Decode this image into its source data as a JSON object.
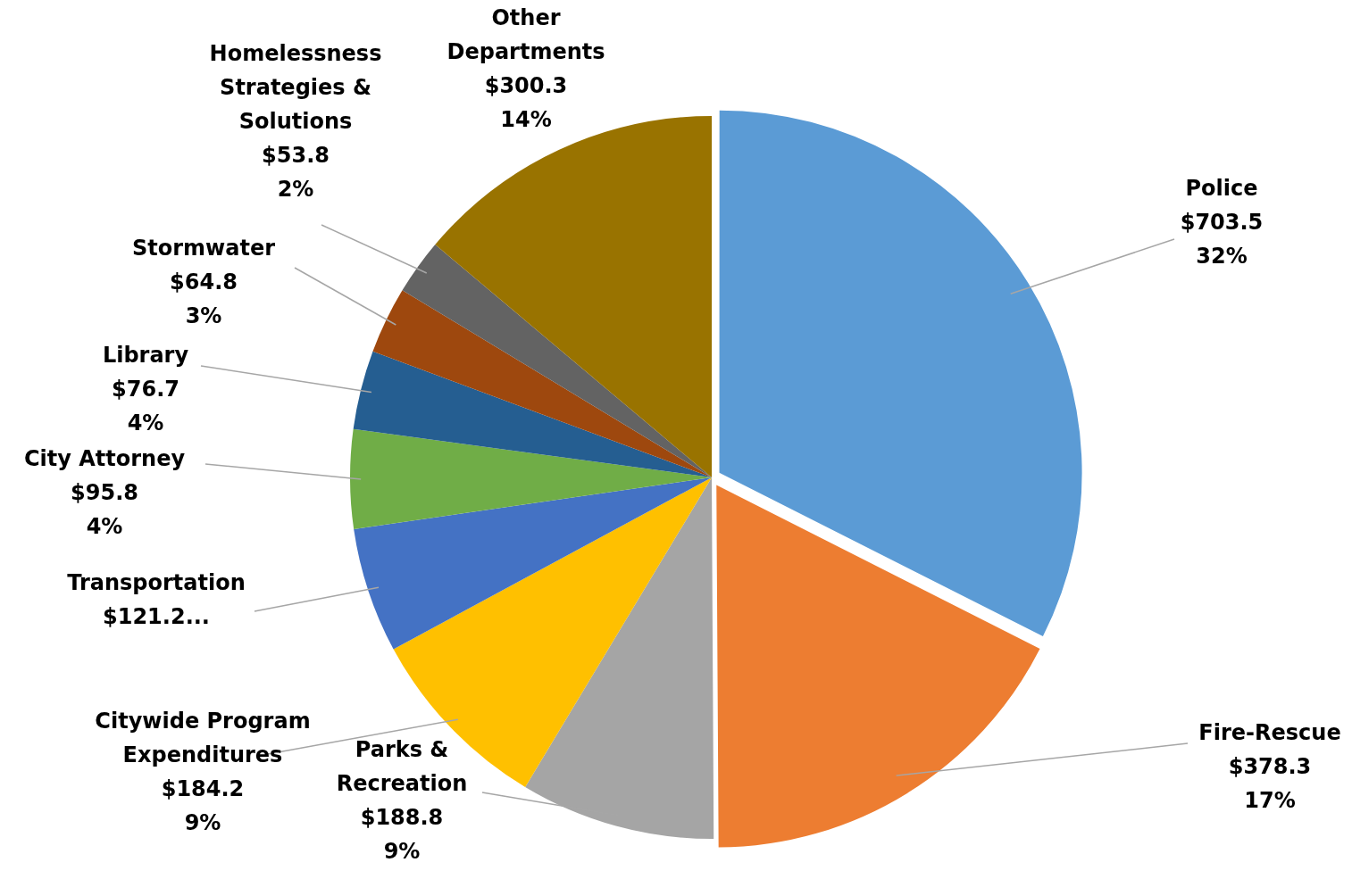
{
  "chart_data": {
    "type": "pie",
    "categories": [
      "Police",
      "Fire-Rescue",
      "Parks & Recreation",
      "Citywide Program Expenditures",
      "Transportation",
      "City Attorney",
      "Library",
      "Stormwater",
      "Homelessness Strategies & Solutions",
      "Other Departments"
    ],
    "values": [
      703.5,
      378.3,
      188.8,
      184.2,
      121.2,
      95.8,
      76.7,
      64.8,
      53.8,
      300.3
    ],
    "colors": [
      "#5b9bd5",
      "#ed7d31",
      "#a5a5a5",
      "#ffc000",
      "#4472c4",
      "#70ad47",
      "#255e91",
      "#9e480e",
      "#636363",
      "#997300"
    ],
    "value_labels": [
      "$703.5 32%",
      "$378.3 17%",
      "$188.8 9%",
      "$184.2 9%",
      "$121.2...",
      "$95.8 4%",
      "$76.7 4%",
      "$64.8 3%",
      "$53.8 2%",
      "$300.3 14%"
    ],
    "legend": false
  }
}
